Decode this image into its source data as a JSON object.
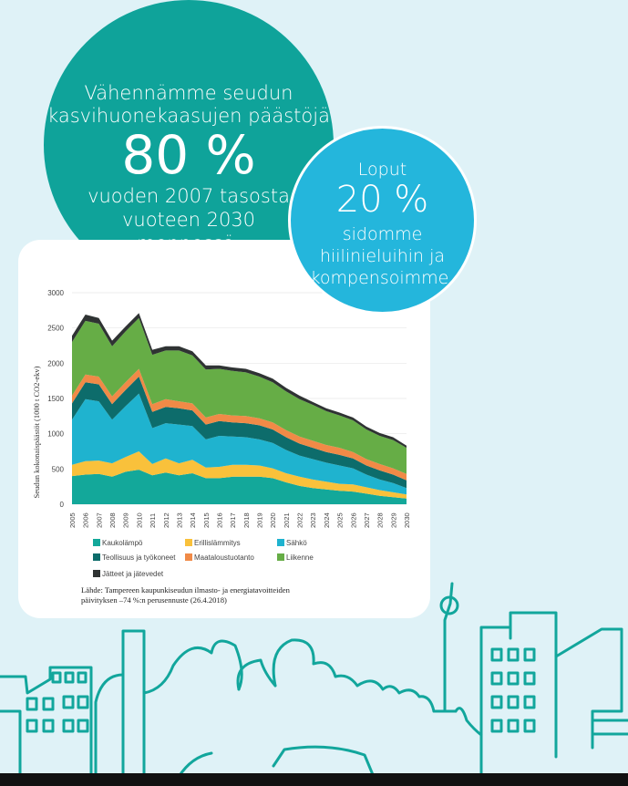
{
  "big_circle": {
    "line1": "Vähennämme seudun",
    "line2": "kasvihuonekaasujen päästöjä",
    "big_number": "80 %",
    "line3": "vuoden 2007 tasosta",
    "line4": "vuoteen 2030",
    "line5": "mennessä."
  },
  "small_circle": {
    "line1": "Loput",
    "big_number": "20 %",
    "line2": "sidomme",
    "line3": "hiilinieluihin ja",
    "line4": "kompensoimme."
  },
  "chart_data": {
    "type": "area",
    "ylabel": "Seudun kokonaispäästöt (1000 t CO2-ekv)",
    "ylim": [
      0,
      3000
    ],
    "yticks": [
      "0",
      "500",
      "1000",
      "1500",
      "2000",
      "2500",
      "3000"
    ],
    "x": [
      "2005",
      "2006",
      "2007",
      "2008",
      "2009",
      "2010",
      "2011",
      "2012",
      "2013",
      "2014",
      "2015",
      "2016",
      "2017",
      "2018",
      "2019",
      "2020",
      "2021",
      "2022",
      "2023",
      "2024",
      "2025",
      "2026",
      "2027",
      "2028",
      "2029",
      "2030"
    ],
    "series": [
      {
        "name": "Kaukolämpö",
        "color": "#13a89a",
        "values": [
          400,
          420,
          430,
          390,
          460,
          490,
          410,
          450,
          410,
          440,
          370,
          370,
          390,
          390,
          390,
          370,
          310,
          260,
          230,
          210,
          190,
          180,
          150,
          120,
          100,
          80
        ]
      },
      {
        "name": "Erillislämmitys",
        "color": "#f9c13b",
        "values": [
          160,
          190,
          190,
          190,
          210,
          260,
          160,
          200,
          170,
          190,
          150,
          160,
          170,
          170,
          160,
          140,
          130,
          130,
          120,
          110,
          100,
          100,
          90,
          80,
          70,
          60
        ]
      },
      {
        "name": "Sähkö",
        "color": "#1fb3cf",
        "values": [
          640,
          880,
          840,
          620,
          720,
          820,
          510,
          500,
          550,
          480,
          400,
          440,
          400,
          390,
          370,
          360,
          330,
          300,
          290,
          270,
          260,
          230,
          180,
          150,
          130,
          90
        ]
      },
      {
        "name": "Teollisuus ja työkoneet",
        "color": "#0d6c6b",
        "values": [
          230,
          240,
          240,
          220,
          230,
          240,
          230,
          230,
          230,
          220,
          210,
          210,
          200,
          200,
          200,
          190,
          180,
          170,
          160,
          150,
          150,
          140,
          130,
          130,
          120,
          110
        ]
      },
      {
        "name": "Maataloustuotanto",
        "color": "#f08a47",
        "values": [
          110,
          110,
          110,
          110,
          110,
          110,
          110,
          110,
          100,
          100,
          100,
          100,
          100,
          100,
          100,
          100,
          100,
          100,
          100,
          100,
          100,
          90,
          90,
          90,
          90,
          90
        ]
      },
      {
        "name": "Liikenne",
        "color": "#66ad46",
        "values": [
          760,
          760,
          750,
          710,
          720,
          720,
          700,
          690,
          720,
          680,
          680,
          640,
          630,
          620,
          590,
          570,
          550,
          530,
          510,
          480,
          460,
          450,
          420,
          400,
          400,
          370
        ]
      },
      {
        "name": "Jätteet ja jätevedet",
        "color": "#2f3333",
        "values": [
          90,
          90,
          80,
          80,
          70,
          70,
          70,
          60,
          60,
          60,
          60,
          50,
          50,
          50,
          50,
          50,
          50,
          50,
          40,
          40,
          40,
          40,
          40,
          40,
          40,
          30
        ]
      }
    ]
  },
  "source": {
    "line1": "Lähde: Tampereen kaupunkiseudun ilmasto- ja energiatavoitteiden",
    "line2": "päivityksen –74 %:n perusennuste (26.4.2018)"
  }
}
